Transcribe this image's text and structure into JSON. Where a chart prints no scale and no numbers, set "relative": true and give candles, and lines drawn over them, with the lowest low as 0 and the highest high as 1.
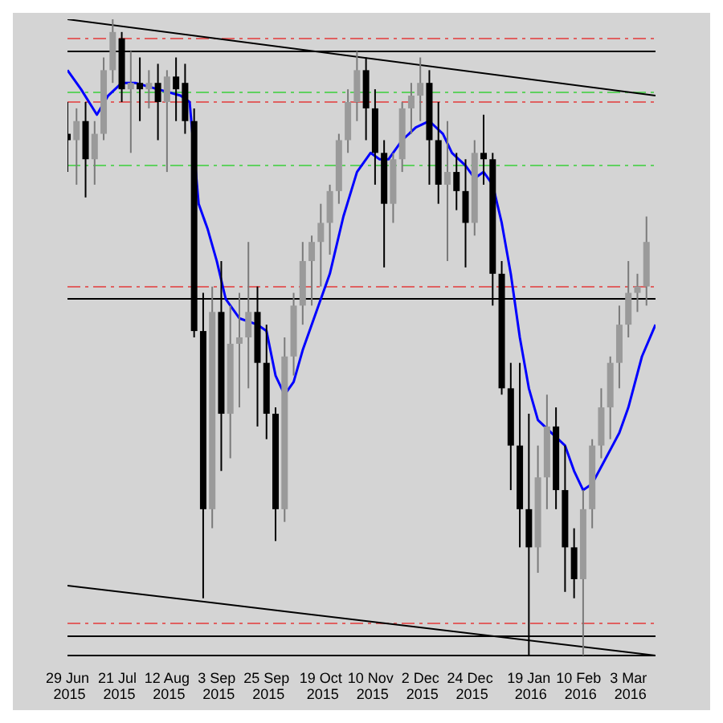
{
  "chart_data": {
    "type": "candlestick",
    "relative": true,
    "grid": false,
    "xlim": [
      "2015-06-29",
      "2016-03-15"
    ],
    "xticks": [
      {
        "value": "2015-06-29",
        "label": "29 Jun 2015"
      },
      {
        "value": "2015-07-21",
        "label": "21 Jul 2015"
      },
      {
        "value": "2015-08-12",
        "label": "12 Aug 2015"
      },
      {
        "value": "2015-09-03",
        "label": "3 Sep 2015"
      },
      {
        "value": "2015-09-25",
        "label": "25 Sep 2015"
      },
      {
        "value": "2015-10-19",
        "label": "19 Oct 2015"
      },
      {
        "value": "2015-11-10",
        "label": "10 Nov 2015"
      },
      {
        "value": "2015-12-02",
        "label": "2 Dec 2015"
      },
      {
        "value": "2015-12-24",
        "label": "24 Dec 2015"
      },
      {
        "value": "2016-01-19",
        "label": "19 Jan 2016"
      },
      {
        "value": "2016-02-10",
        "label": "10 Feb 2016"
      },
      {
        "value": "2016-03-03",
        "label": "3 Mar 2016"
      }
    ],
    "x": [
      "2015-06-29",
      "2015-07-03",
      "2015-07-07",
      "2015-07-11",
      "2015-07-15",
      "2015-07-19",
      "2015-07-23",
      "2015-07-27",
      "2015-07-31",
      "2015-08-04",
      "2015-08-08",
      "2015-08-12",
      "2015-08-16",
      "2015-08-20",
      "2015-08-24",
      "2015-08-28",
      "2015-09-01",
      "2015-09-05",
      "2015-09-09",
      "2015-09-13",
      "2015-09-17",
      "2015-09-21",
      "2015-09-25",
      "2015-09-29",
      "2015-10-03",
      "2015-10-07",
      "2015-10-11",
      "2015-10-15",
      "2015-10-19",
      "2015-10-23",
      "2015-10-27",
      "2015-10-31",
      "2015-11-04",
      "2015-11-08",
      "2015-11-12",
      "2015-11-16",
      "2015-11-20",
      "2015-11-24",
      "2015-11-28",
      "2015-12-02",
      "2015-12-06",
      "2015-12-10",
      "2015-12-14",
      "2015-12-18",
      "2015-12-22",
      "2015-12-26",
      "2015-12-30",
      "2016-01-03",
      "2016-01-07",
      "2016-01-11",
      "2016-01-15",
      "2016-01-19",
      "2016-01-23",
      "2016-01-27",
      "2016-01-31",
      "2016-02-04",
      "2016-02-08",
      "2016-02-12",
      "2016-02-16",
      "2016-02-20",
      "2016-02-24",
      "2016-02-28",
      "2016-03-03",
      "2016-03-07",
      "2016-03-11"
    ],
    "ohlc": [
      [
        0.82,
        0.87,
        0.76,
        0.81
      ],
      [
        0.81,
        0.86,
        0.74,
        0.84
      ],
      [
        0.84,
        0.87,
        0.72,
        0.78
      ],
      [
        0.78,
        0.84,
        0.74,
        0.82
      ],
      [
        0.82,
        0.94,
        0.81,
        0.92
      ],
      [
        0.92,
        1.0,
        0.9,
        0.98
      ],
      [
        0.97,
        0.98,
        0.87,
        0.89
      ],
      [
        0.89,
        0.95,
        0.79,
        0.9
      ],
      [
        0.9,
        0.94,
        0.84,
        0.89
      ],
      [
        0.89,
        0.92,
        0.86,
        0.9
      ],
      [
        0.9,
        0.93,
        0.81,
        0.87
      ],
      [
        0.87,
        0.92,
        0.76,
        0.91
      ],
      [
        0.91,
        0.94,
        0.84,
        0.89
      ],
      [
        0.9,
        0.93,
        0.82,
        0.84
      ],
      [
        0.84,
        0.86,
        0.5,
        0.51
      ],
      [
        0.51,
        0.57,
        0.09,
        0.23
      ],
      [
        0.23,
        0.58,
        0.2,
        0.54
      ],
      [
        0.54,
        0.62,
        0.29,
        0.38
      ],
      [
        0.38,
        0.55,
        0.31,
        0.49
      ],
      [
        0.49,
        0.57,
        0.39,
        0.5
      ],
      [
        0.5,
        0.65,
        0.42,
        0.54
      ],
      [
        0.54,
        0.58,
        0.36,
        0.46
      ],
      [
        0.46,
        0.52,
        0.34,
        0.38
      ],
      [
        0.38,
        0.39,
        0.18,
        0.23
      ],
      [
        0.23,
        0.5,
        0.21,
        0.47
      ],
      [
        0.47,
        0.57,
        0.44,
        0.55
      ],
      [
        0.55,
        0.65,
        0.52,
        0.62
      ],
      [
        0.62,
        0.66,
        0.55,
        0.65
      ],
      [
        0.65,
        0.71,
        0.58,
        0.68
      ],
      [
        0.68,
        0.74,
        0.63,
        0.73
      ],
      [
        0.73,
        0.82,
        0.71,
        0.81
      ],
      [
        0.81,
        0.89,
        0.79,
        0.87
      ],
      [
        0.87,
        0.95,
        0.84,
        0.92
      ],
      [
        0.92,
        0.94,
        0.81,
        0.86
      ],
      [
        0.86,
        0.89,
        0.74,
        0.79
      ],
      [
        0.79,
        0.81,
        0.61,
        0.71
      ],
      [
        0.71,
        0.79,
        0.68,
        0.78
      ],
      [
        0.78,
        0.87,
        0.76,
        0.86
      ],
      [
        0.86,
        0.9,
        0.82,
        0.88
      ],
      [
        0.88,
        0.94,
        0.84,
        0.9
      ],
      [
        0.9,
        0.92,
        0.74,
        0.81
      ],
      [
        0.81,
        0.87,
        0.71,
        0.74
      ],
      [
        0.74,
        0.84,
        0.62,
        0.76
      ],
      [
        0.76,
        0.79,
        0.7,
        0.73
      ],
      [
        0.73,
        0.78,
        0.61,
        0.68
      ],
      [
        0.68,
        0.81,
        0.66,
        0.79
      ],
      [
        0.79,
        0.85,
        0.74,
        0.78
      ],
      [
        0.78,
        0.79,
        0.55,
        0.6
      ],
      [
        0.6,
        0.62,
        0.41,
        0.42
      ],
      [
        0.42,
        0.46,
        0.26,
        0.33
      ],
      [
        0.33,
        0.46,
        0.17,
        0.23
      ],
      [
        0.23,
        0.38,
        0.0,
        0.17
      ],
      [
        0.17,
        0.33,
        0.13,
        0.28
      ],
      [
        0.28,
        0.41,
        0.23,
        0.36
      ],
      [
        0.36,
        0.39,
        0.23,
        0.26
      ],
      [
        0.26,
        0.33,
        0.1,
        0.17
      ],
      [
        0.17,
        0.2,
        0.09,
        0.12
      ],
      [
        0.12,
        0.26,
        0.0,
        0.23
      ],
      [
        0.23,
        0.34,
        0.2,
        0.33
      ],
      [
        0.33,
        0.42,
        0.31,
        0.39
      ],
      [
        0.39,
        0.47,
        0.34,
        0.46
      ],
      [
        0.46,
        0.55,
        0.42,
        0.52
      ],
      [
        0.52,
        0.62,
        0.5,
        0.57
      ],
      [
        0.57,
        0.6,
        0.54,
        0.58
      ],
      [
        0.58,
        0.69,
        0.55,
        0.65
      ]
    ],
    "series": [
      {
        "type": "line",
        "color": "#0000ff",
        "x": [
          "2015-06-29",
          "2015-07-05",
          "2015-07-12",
          "2015-07-17",
          "2015-07-23",
          "2015-07-29",
          "2015-08-08",
          "2015-08-18",
          "2015-08-22",
          "2015-08-26",
          "2015-08-30",
          "2015-09-03",
          "2015-09-07",
          "2015-09-13",
          "2015-09-21",
          "2015-09-25",
          "2015-09-29",
          "2015-10-03",
          "2015-10-07",
          "2015-10-11",
          "2015-10-17",
          "2015-10-23",
          "2015-10-29",
          "2015-11-04",
          "2015-11-10",
          "2015-11-14",
          "2015-11-18",
          "2015-11-24",
          "2015-11-30",
          "2015-12-06",
          "2015-12-12",
          "2015-12-16",
          "2015-12-22",
          "2015-12-26",
          "2015-12-30",
          "2016-01-03",
          "2016-01-07",
          "2016-01-11",
          "2016-01-15",
          "2016-01-19",
          "2016-01-23",
          "2016-01-29",
          "2016-02-04",
          "2016-02-08",
          "2016-02-12",
          "2016-02-16",
          "2016-02-22",
          "2016-02-28",
          "2016-03-03",
          "2016-03-09",
          "2016-03-15"
        ],
        "values": [
          0.92,
          0.89,
          0.85,
          0.88,
          0.9,
          0.9,
          0.89,
          0.88,
          0.87,
          0.71,
          0.67,
          0.62,
          0.56,
          0.53,
          0.52,
          0.51,
          0.44,
          0.41,
          0.43,
          0.48,
          0.54,
          0.6,
          0.69,
          0.76,
          0.79,
          0.78,
          0.78,
          0.81,
          0.83,
          0.84,
          0.82,
          0.79,
          0.77,
          0.75,
          0.76,
          0.74,
          0.68,
          0.6,
          0.5,
          0.42,
          0.37,
          0.35,
          0.33,
          0.29,
          0.26,
          0.27,
          0.31,
          0.35,
          0.39,
          0.47,
          0.52
        ]
      },
      {
        "type": "line",
        "color": "#000000",
        "x": [
          "2015-06-29",
          "2016-03-15"
        ],
        "values": [
          1.0,
          0.88
        ]
      },
      {
        "type": "line",
        "color": "#000000",
        "x": [
          "2015-06-29",
          "2016-03-15"
        ],
        "values": [
          0.11,
          0.0
        ]
      }
    ],
    "ref_lines": [
      {
        "axis": "y",
        "value": 0.97,
        "color": "#e06060",
        "line_style": "dashed"
      },
      {
        "axis": "y",
        "value": 0.95,
        "color": "#000000",
        "line_style": "solid"
      },
      {
        "axis": "y",
        "value": 0.885,
        "color": "#60d060",
        "line_style": "dashed"
      },
      {
        "axis": "y",
        "value": 0.87,
        "color": "#e06060",
        "line_style": "dashed"
      },
      {
        "axis": "y",
        "value": 0.77,
        "color": "#60d060",
        "line_style": "dashed"
      },
      {
        "axis": "y",
        "value": 0.58,
        "color": "#e06060",
        "line_style": "dashed"
      },
      {
        "axis": "y",
        "value": 0.56,
        "color": "#000000",
        "line_style": "solid"
      },
      {
        "axis": "y",
        "value": 0.05,
        "color": "#e06060",
        "line_style": "dashed"
      },
      {
        "axis": "y",
        "value": 0.03,
        "color": "#000000",
        "line_style": "solid"
      }
    ]
  }
}
